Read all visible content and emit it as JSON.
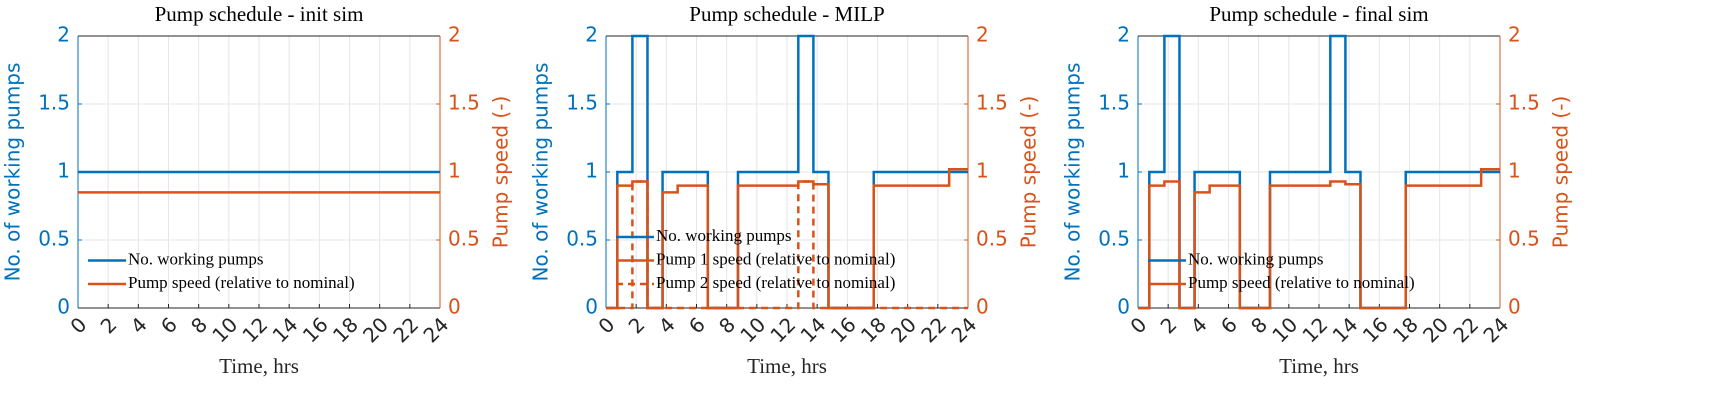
{
  "chart_data": [
    {
      "type": "line",
      "title": "Pump schedule - init sim",
      "xlabel": "Time, hrs",
      "ylabel": "No. of working pumps",
      "y2label": "Pump speed (-)",
      "drawstyle": "steps-post",
      "grid": true,
      "legend": "southwest",
      "x": [
        0,
        24
      ],
      "series": [
        {
          "name": "No. working pumps",
          "color": "#0072bd",
          "values": [
            1,
            1
          ]
        },
        {
          "name": "Pump speed (relative to nominal)",
          "color": "#d95319",
          "axis": "y2",
          "values": [
            0.85,
            0.85
          ]
        }
      ],
      "xlim": [
        0,
        24
      ],
      "xticks": [
        0,
        2,
        4,
        6,
        8,
        10,
        12,
        14,
        16,
        18,
        20,
        22,
        24
      ],
      "ylim": [
        0,
        2
      ],
      "yticks": [
        0,
        0.5,
        1,
        1.5,
        2
      ],
      "y2lim": [
        0,
        2
      ],
      "y2ticks": [
        0,
        0.5,
        1,
        1.5,
        2
      ]
    },
    {
      "type": "line",
      "title": "Pump schedule - MILP",
      "xlabel": "Time, hrs",
      "ylabel": "No. of working pumps",
      "y2label": "Pump speed (-)",
      "drawstyle": "steps-post",
      "grid": true,
      "legend": "southwest",
      "x": [
        0,
        0.75,
        1.75,
        2.75,
        3.75,
        4.75,
        6.75,
        8.75,
        12.75,
        13.75,
        14.75,
        17.75,
        22.75,
        24
      ],
      "series": [
        {
          "name": "No. working pumps",
          "color": "#0072bd",
          "values": [
            0,
            1,
            2,
            0,
            1,
            1,
            0,
            1,
            2,
            1,
            0,
            1,
            1,
            1
          ]
        },
        {
          "name": "Pump 1 speed (relative to nominal)",
          "color": "#d95319",
          "axis": "y2",
          "values": [
            0,
            0.9,
            0.93,
            0,
            0.85,
            0.9,
            0,
            0.9,
            0.93,
            0.91,
            0,
            0.9,
            1.02,
            1.02
          ]
        },
        {
          "name": "Pump 2 speed (relative to nominal)",
          "color": "#d95319",
          "axis": "y2",
          "linestyle": "dashed",
          "values": [
            0,
            0,
            0.93,
            0,
            0,
            0,
            0,
            0,
            0.93,
            0,
            0,
            0,
            0,
            0
          ]
        }
      ],
      "xlim": [
        0,
        24
      ],
      "xticks": [
        0,
        2,
        4,
        6,
        8,
        10,
        12,
        14,
        16,
        18,
        20,
        22,
        24
      ],
      "ylim": [
        0,
        2
      ],
      "yticks": [
        0,
        0.5,
        1,
        1.5,
        2
      ],
      "y2lim": [
        0,
        2
      ],
      "y2ticks": [
        0,
        0.5,
        1,
        1.5,
        2
      ]
    },
    {
      "type": "line",
      "title": "Pump schedule - final sim",
      "xlabel": "Time, hrs",
      "ylabel": "No. of working pumps",
      "y2label": "Pump speed (-)",
      "drawstyle": "steps-post",
      "grid": true,
      "legend": "southwest",
      "x": [
        0,
        0.75,
        1.75,
        2.75,
        3.75,
        4.75,
        6.75,
        8.75,
        12.75,
        13.75,
        14.75,
        17.75,
        22.75,
        24
      ],
      "series": [
        {
          "name": "No. working pumps",
          "color": "#0072bd",
          "values": [
            0,
            1,
            2,
            0,
            1,
            1,
            0,
            1,
            2,
            1,
            0,
            1,
            1,
            1
          ]
        },
        {
          "name": "Pump speed (relative to nominal)",
          "color": "#d95319",
          "axis": "y2",
          "values": [
            0,
            0.9,
            0.93,
            0,
            0.85,
            0.9,
            0,
            0.9,
            0.93,
            0.91,
            0,
            0.9,
            1.02,
            1.02
          ]
        }
      ],
      "xlim": [
        0,
        24
      ],
      "xticks": [
        0,
        2,
        4,
        6,
        8,
        10,
        12,
        14,
        16,
        18,
        20,
        22,
        24
      ],
      "ylim": [
        0,
        2
      ],
      "yticks": [
        0,
        0.5,
        1,
        1.5,
        2
      ],
      "y2lim": [
        0,
        2
      ],
      "y2ticks": [
        0,
        0.5,
        1,
        1.5,
        2
      ]
    }
  ]
}
